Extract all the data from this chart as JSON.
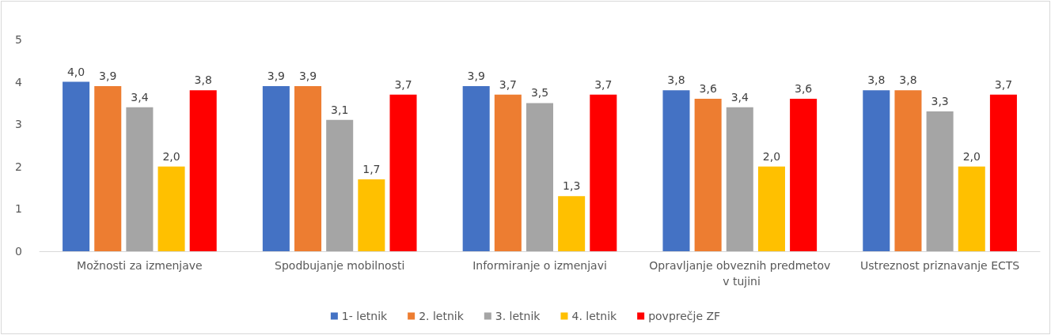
{
  "chart_data": {
    "type": "bar",
    "categories": [
      "Možnosti za izmenjave",
      "Spodbujanje mobilnosti",
      "Informiranje o izmenjavi",
      "Opravljanje obveznih predmetov v tujini",
      "Ustreznost priznavanje ECTS"
    ],
    "series": [
      {
        "name": "1- letnik",
        "color": "#4472c4",
        "values": [
          4.0,
          3.9,
          3.9,
          3.8,
          3.8
        ],
        "value_labels": [
          "4,0",
          "3,9",
          "3,9",
          "3,8",
          "3,8"
        ]
      },
      {
        "name": "2. letnik",
        "color": "#ed7d31",
        "values": [
          3.9,
          3.9,
          3.7,
          3.6,
          3.8
        ],
        "value_labels": [
          "3,9",
          "3,9",
          "3,7",
          "3,6",
          "3,8"
        ]
      },
      {
        "name": "3. letnik",
        "color": "#a5a5a5",
        "values": [
          3.4,
          3.1,
          3.5,
          3.4,
          3.3
        ],
        "value_labels": [
          "3,4",
          "3,1",
          "3,5",
          "3,4",
          "3,3"
        ]
      },
      {
        "name": "4. letnik",
        "color": "#ffc000",
        "values": [
          2.0,
          1.7,
          1.3,
          2.0,
          2.0
        ],
        "value_labels": [
          "2,0",
          "1,7",
          "1,3",
          "2,0",
          "2,0"
        ]
      },
      {
        "name": "povprečje ZF",
        "color": "#ff0000",
        "values": [
          3.8,
          3.7,
          3.7,
          3.6,
          3.7
        ],
        "value_labels": [
          "3,8",
          "3,7",
          "3,7",
          "3,6",
          "3,7"
        ]
      }
    ],
    "ylim": [
      0,
      5
    ],
    "yticks": [
      0,
      1,
      2,
      3,
      4,
      5
    ],
    "grid": false,
    "legend": "bottom"
  }
}
